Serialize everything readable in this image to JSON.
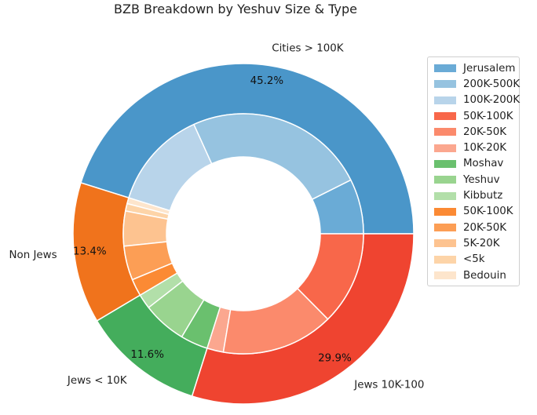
{
  "chart_data": {
    "type": "nested donut",
    "title": "BZB Breakdown by Yeshuv Size & Type",
    "outer": [
      {
        "label": "Cities > 100K",
        "value": 45.2,
        "pct_label": "45.2%",
        "color": "#4a96c9"
      },
      {
        "label": "Non Jews",
        "value": 13.4,
        "pct_label": "13.4%",
        "color": "#f0731c"
      },
      {
        "label": "Jews < 10K",
        "value": 11.6,
        "pct_label": "11.6%",
        "color": "#44ad5c"
      },
      {
        "label": "Jews 10K-100K",
        "value": 29.9,
        "pct_label": "29.9%",
        "color": "#ef4430"
      }
    ],
    "inner": [
      {
        "label": "Jerusalem",
        "value": 7.4,
        "color": "#6aabd6"
      },
      {
        "label": "200K-500K",
        "value": 24.4,
        "color": "#96c3e0"
      },
      {
        "label": "100K-200K",
        "value": 13.4,
        "color": "#b8d4ea"
      },
      {
        "label": "Bedouin",
        "value": 0.8,
        "color": "#fde5cc"
      },
      {
        "label": "<5k",
        "value": 1.0,
        "color": "#fdd4a8"
      },
      {
        "label": "5K-20K",
        "value": 4.7,
        "color": "#fdc390"
      },
      {
        "label": "20K-50K",
        "value": 4.6,
        "color": "#fc9e55"
      },
      {
        "label": "50K-100K",
        "value": 2.3,
        "color": "#fb8a34"
      },
      {
        "label": "Kibbutz",
        "value": 2.0,
        "color": "#b2dfa9"
      },
      {
        "label": "Yeshuv",
        "value": 5.9,
        "color": "#99d48f"
      },
      {
        "label": "Moshav",
        "value": 3.7,
        "color": "#6ac06e"
      },
      {
        "label": "10K-20K",
        "value": 2.2,
        "color": "#fba78f"
      },
      {
        "label": "20K-50K",
        "value": 15.1,
        "color": "#fb8a6c"
      },
      {
        "label": "50K-100K",
        "value": 12.6,
        "color": "#f8674a"
      }
    ],
    "legend": [
      {
        "label": "Jerusalem",
        "color": "#6aabd6"
      },
      {
        "label": "200K-500K",
        "color": "#96c3e0"
      },
      {
        "label": "100K-200K",
        "color": "#b8d4ea"
      },
      {
        "label": "50K-100K",
        "color": "#f8674a"
      },
      {
        "label": "20K-50K",
        "color": "#fb8a6c"
      },
      {
        "label": "10K-20K",
        "color": "#fba78f"
      },
      {
        "label": "Moshav",
        "color": "#6ac06e"
      },
      {
        "label": "Yeshuv",
        "color": "#99d48f"
      },
      {
        "label": "Kibbutz",
        "color": "#b2dfa9"
      },
      {
        "label": "50K-100K",
        "color": "#fb8a34"
      },
      {
        "label": "20K-50K",
        "color": "#fc9e55"
      },
      {
        "label": "5K-20K",
        "color": "#fdc390"
      },
      {
        "label": "<5k",
        "color": "#fdd4a8"
      },
      {
        "label": "Bedouin",
        "color": "#fde5cc"
      }
    ],
    "legend_position": "right"
  }
}
